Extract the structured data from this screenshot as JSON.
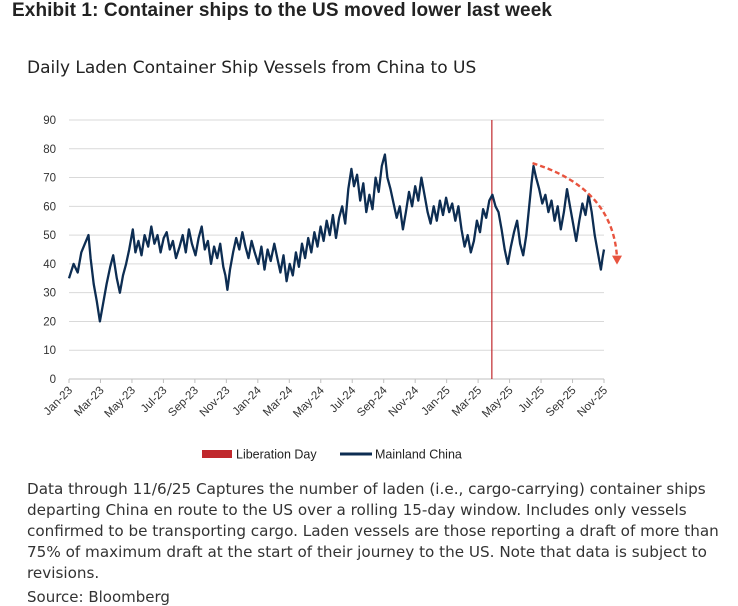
{
  "exhibit_title": "Exhibit 1: Container ships to the US moved lower last week",
  "caption": "Data through 11/6/25 Captures the number of laden (i.e., cargo-carrying) container ships departing China en route to the US over a rolling 15-day window. Includes only vessels confirmed to be transporting cargo. Laden vessels are those reporting a draft of more than 75% of maximum draft at the start of their journey to the US. Note that data is subject to revisions.",
  "source": "Source: Bloomberg",
  "colors": {
    "series": "#0d2d52",
    "liberation": "#c0282d",
    "trend_arrow": "#e8543f",
    "grid": "#d9d9d9"
  },
  "chart_data": {
    "type": "line",
    "title": "Daily Laden Container Ship Vessels from China to US",
    "ylim": [
      0,
      90
    ],
    "yticks": [
      0,
      10,
      20,
      30,
      40,
      50,
      60,
      70,
      80,
      90
    ],
    "xticks": [
      "Jan-23",
      "Mar-23",
      "May-23",
      "Jul-23",
      "Sep-23",
      "Nov-23",
      "Jan-24",
      "Mar-24",
      "May-24",
      "Jul-24",
      "Sep-24",
      "Nov-24",
      "Jan-25",
      "Mar-25",
      "May-25",
      "Jul-25",
      "Sep-25",
      "Nov-25"
    ],
    "grid": "horizontal",
    "legend": {
      "placement": "bottom",
      "entries": [
        "Liberation Day",
        "Mainland China"
      ]
    },
    "vline": {
      "name": "Liberation Day",
      "x": "2025-04-02"
    },
    "trend_arrow": {
      "from": [
        "2025-06-20",
        75
      ],
      "to": [
        "2025-11-06",
        38
      ]
    },
    "series": [
      {
        "name": "Mainland China",
        "points": [
          [
            "2023-01-01",
            35
          ],
          [
            "2023-01-10",
            40
          ],
          [
            "2023-01-18",
            37
          ],
          [
            "2023-01-25",
            44
          ],
          [
            "2023-02-01",
            47
          ],
          [
            "2023-02-08",
            50
          ],
          [
            "2023-02-12",
            42
          ],
          [
            "2023-02-18",
            33
          ],
          [
            "2023-02-24",
            27
          ],
          [
            "2023-03-02",
            20
          ],
          [
            "2023-03-08",
            26
          ],
          [
            "2023-03-15",
            33
          ],
          [
            "2023-03-22",
            39
          ],
          [
            "2023-03-28",
            43
          ],
          [
            "2023-04-04",
            35
          ],
          [
            "2023-04-10",
            30
          ],
          [
            "2023-04-16",
            36
          ],
          [
            "2023-04-22",
            40
          ],
          [
            "2023-04-28",
            45
          ],
          [
            "2023-05-05",
            52
          ],
          [
            "2023-05-10",
            44
          ],
          [
            "2023-05-16",
            48
          ],
          [
            "2023-05-22",
            43
          ],
          [
            "2023-05-28",
            50
          ],
          [
            "2023-06-04",
            46
          ],
          [
            "2023-06-10",
            53
          ],
          [
            "2023-06-16",
            47
          ],
          [
            "2023-06-22",
            50
          ],
          [
            "2023-06-28",
            44
          ],
          [
            "2023-07-04",
            49
          ],
          [
            "2023-07-10",
            51
          ],
          [
            "2023-07-16",
            45
          ],
          [
            "2023-07-22",
            48
          ],
          [
            "2023-07-28",
            42
          ],
          [
            "2023-08-04",
            46
          ],
          [
            "2023-08-10",
            50
          ],
          [
            "2023-08-16",
            44
          ],
          [
            "2023-08-22",
            52
          ],
          [
            "2023-08-28",
            47
          ],
          [
            "2023-09-04",
            43
          ],
          [
            "2023-09-10",
            49
          ],
          [
            "2023-09-16",
            53
          ],
          [
            "2023-09-22",
            45
          ],
          [
            "2023-09-28",
            48
          ],
          [
            "2023-10-04",
            40
          ],
          [
            "2023-10-10",
            46
          ],
          [
            "2023-10-16",
            42
          ],
          [
            "2023-10-22",
            47
          ],
          [
            "2023-10-28",
            39
          ],
          [
            "2023-11-01",
            36
          ],
          [
            "2023-11-05",
            31
          ],
          [
            "2023-11-10",
            38
          ],
          [
            "2023-11-16",
            44
          ],
          [
            "2023-11-22",
            49
          ],
          [
            "2023-11-28",
            45
          ],
          [
            "2023-12-04",
            51
          ],
          [
            "2023-12-10",
            46
          ],
          [
            "2023-12-16",
            42
          ],
          [
            "2023-12-22",
            48
          ],
          [
            "2023-12-28",
            44
          ],
          [
            "2024-01-04",
            40
          ],
          [
            "2024-01-10",
            46
          ],
          [
            "2024-01-16",
            38
          ],
          [
            "2024-01-22",
            45
          ],
          [
            "2024-01-28",
            41
          ],
          [
            "2024-02-04",
            47
          ],
          [
            "2024-02-10",
            42
          ],
          [
            "2024-02-16",
            37
          ],
          [
            "2024-02-22",
            43
          ],
          [
            "2024-02-28",
            34
          ],
          [
            "2024-03-05",
            40
          ],
          [
            "2024-03-11",
            36
          ],
          [
            "2024-03-17",
            44
          ],
          [
            "2024-03-23",
            39
          ],
          [
            "2024-03-29",
            47
          ],
          [
            "2024-04-04",
            42
          ],
          [
            "2024-04-10",
            49
          ],
          [
            "2024-04-16",
            44
          ],
          [
            "2024-04-22",
            51
          ],
          [
            "2024-04-28",
            46
          ],
          [
            "2024-05-04",
            53
          ],
          [
            "2024-05-10",
            48
          ],
          [
            "2024-05-16",
            55
          ],
          [
            "2024-05-22",
            50
          ],
          [
            "2024-05-28",
            57
          ],
          [
            "2024-06-03",
            49
          ],
          [
            "2024-06-09",
            56
          ],
          [
            "2024-06-15",
            60
          ],
          [
            "2024-06-21",
            54
          ],
          [
            "2024-06-27",
            66
          ],
          [
            "2024-07-03",
            73
          ],
          [
            "2024-07-08",
            67
          ],
          [
            "2024-07-14",
            71
          ],
          [
            "2024-07-20",
            62
          ],
          [
            "2024-07-26",
            68
          ],
          [
            "2024-08-01",
            58
          ],
          [
            "2024-08-07",
            64
          ],
          [
            "2024-08-13",
            59
          ],
          [
            "2024-08-19",
            70
          ],
          [
            "2024-08-25",
            65
          ],
          [
            "2024-08-31",
            74
          ],
          [
            "2024-09-06",
            78
          ],
          [
            "2024-09-11",
            70
          ],
          [
            "2024-09-17",
            66
          ],
          [
            "2024-09-23",
            61
          ],
          [
            "2024-09-29",
            56
          ],
          [
            "2024-10-05",
            60
          ],
          [
            "2024-10-11",
            52
          ],
          [
            "2024-10-17",
            58
          ],
          [
            "2024-10-23",
            65
          ],
          [
            "2024-10-29",
            60
          ],
          [
            "2024-11-04",
            67
          ],
          [
            "2024-11-10",
            62
          ],
          [
            "2024-11-16",
            70
          ],
          [
            "2024-11-22",
            64
          ],
          [
            "2024-11-28",
            58
          ],
          [
            "2024-12-04",
            54
          ],
          [
            "2024-12-10",
            60
          ],
          [
            "2024-12-16",
            55
          ],
          [
            "2024-12-22",
            62
          ],
          [
            "2024-12-28",
            57
          ],
          [
            "2025-01-03",
            63
          ],
          [
            "2025-01-09",
            58
          ],
          [
            "2025-01-15",
            61
          ],
          [
            "2025-01-21",
            55
          ],
          [
            "2025-01-27",
            60
          ],
          [
            "2025-02-02",
            52
          ],
          [
            "2025-02-08",
            46
          ],
          [
            "2025-02-14",
            50
          ],
          [
            "2025-02-20",
            44
          ],
          [
            "2025-02-26",
            48
          ],
          [
            "2025-03-04",
            55
          ],
          [
            "2025-03-10",
            51
          ],
          [
            "2025-03-16",
            59
          ],
          [
            "2025-03-22",
            56
          ],
          [
            "2025-03-28",
            62
          ],
          [
            "2025-04-03",
            64
          ],
          [
            "2025-04-09",
            60
          ],
          [
            "2025-04-15",
            58
          ],
          [
            "2025-04-21",
            52
          ],
          [
            "2025-04-27",
            45
          ],
          [
            "2025-05-03",
            40
          ],
          [
            "2025-05-09",
            46
          ],
          [
            "2025-05-15",
            51
          ],
          [
            "2025-05-21",
            55
          ],
          [
            "2025-05-27",
            47
          ],
          [
            "2025-06-02",
            43
          ],
          [
            "2025-06-08",
            50
          ],
          [
            "2025-06-13",
            59
          ],
          [
            "2025-06-18",
            68
          ],
          [
            "2025-06-22",
            74
          ],
          [
            "2025-06-27",
            70
          ],
          [
            "2025-07-03",
            66
          ],
          [
            "2025-07-09",
            61
          ],
          [
            "2025-07-15",
            64
          ],
          [
            "2025-07-21",
            58
          ],
          [
            "2025-07-27",
            62
          ],
          [
            "2025-08-02",
            55
          ],
          [
            "2025-08-08",
            60
          ],
          [
            "2025-08-14",
            52
          ],
          [
            "2025-08-20",
            58
          ],
          [
            "2025-08-26",
            66
          ],
          [
            "2025-09-01",
            60
          ],
          [
            "2025-09-07",
            54
          ],
          [
            "2025-09-13",
            48
          ],
          [
            "2025-09-19",
            55
          ],
          [
            "2025-09-25",
            61
          ],
          [
            "2025-10-01",
            57
          ],
          [
            "2025-10-07",
            64
          ],
          [
            "2025-10-13",
            58
          ],
          [
            "2025-10-19",
            50
          ],
          [
            "2025-10-25",
            44
          ],
          [
            "2025-10-31",
            38
          ],
          [
            "2025-11-03",
            42
          ],
          [
            "2025-11-06",
            45
          ]
        ]
      }
    ]
  }
}
